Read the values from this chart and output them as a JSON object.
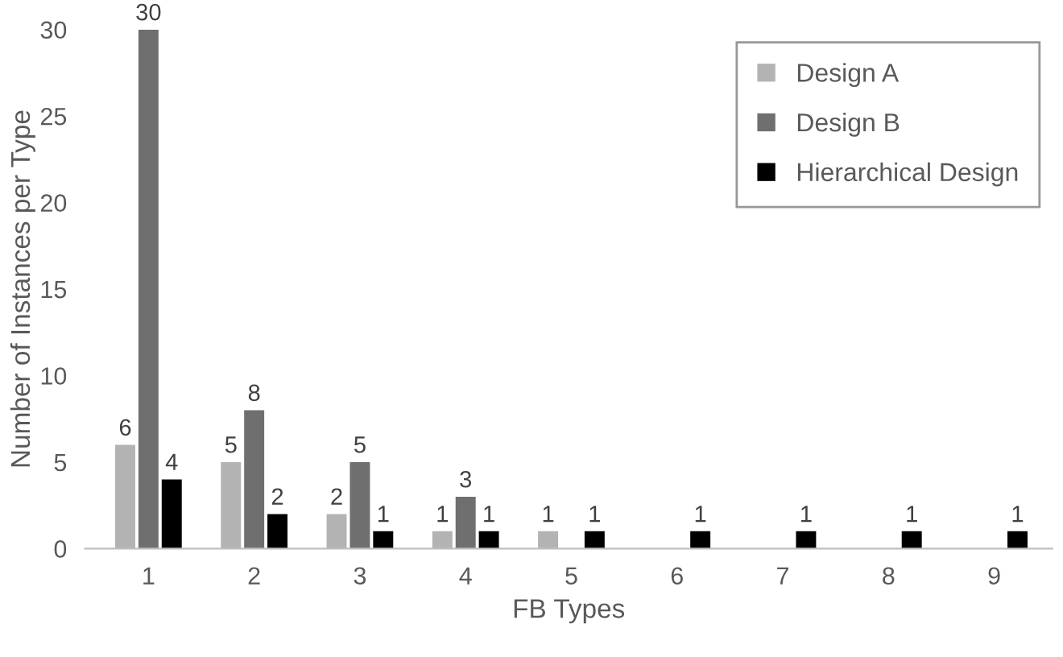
{
  "chart_data": {
    "type": "bar",
    "xlabel": "FB Types",
    "ylabel": "Number of Instances per Type",
    "categories": [
      "1",
      "2",
      "3",
      "4",
      "5",
      "6",
      "7",
      "8",
      "9"
    ],
    "series": [
      {
        "name": "Design A",
        "color": "#b3b3b3",
        "values": [
          6,
          5,
          2,
          1,
          1,
          null,
          null,
          null,
          null
        ]
      },
      {
        "name": "Design B",
        "color": "#6f6f6f",
        "values": [
          30,
          8,
          5,
          3,
          null,
          null,
          null,
          null,
          null
        ]
      },
      {
        "name": "Hierarchical Design",
        "color": "#000000",
        "values": [
          4,
          2,
          1,
          1,
          1,
          1,
          1,
          1,
          1
        ]
      }
    ],
    "ylim": [
      0,
      30
    ],
    "yticks": [
      0,
      5,
      10,
      15,
      20,
      25,
      30
    ],
    "data_labels": true,
    "legend": "top right",
    "grid": false
  }
}
